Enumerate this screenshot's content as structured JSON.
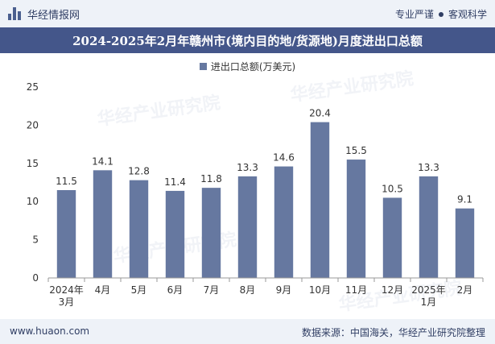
{
  "header": {
    "brand_name": "华经情报网",
    "tagline_left": "专业严谨",
    "tagline_right": "客观科学"
  },
  "watermark": "华经产业研究院",
  "chart_data": {
    "type": "bar",
    "title": "2024-2025年2月年赣州市(境内目的地/货源地)月度进出口总额",
    "legend_label": "进出口总额(万美元)",
    "categories": [
      "2024年\n3月",
      "4月",
      "5月",
      "6月",
      "7月",
      "8月",
      "9月",
      "10月",
      "11月",
      "12月",
      "2025年\n1月",
      "2月"
    ],
    "series": [
      {
        "name": "进出口总额(万美元)",
        "values": [
          11.5,
          14.1,
          12.8,
          11.4,
          11.8,
          13.3,
          14.6,
          20.4,
          15.5,
          10.5,
          13.3,
          9.1
        ]
      }
    ],
    "ylim": [
      0,
      25
    ],
    "yticks": [
      0,
      5,
      10,
      15,
      20,
      25
    ],
    "grid": false,
    "legend_position": "top-center",
    "bar_color": "#6678a0"
  },
  "footer": {
    "url": "www.huaon.com",
    "source": "数据来源：中国海关，华经产业研究院整理"
  }
}
